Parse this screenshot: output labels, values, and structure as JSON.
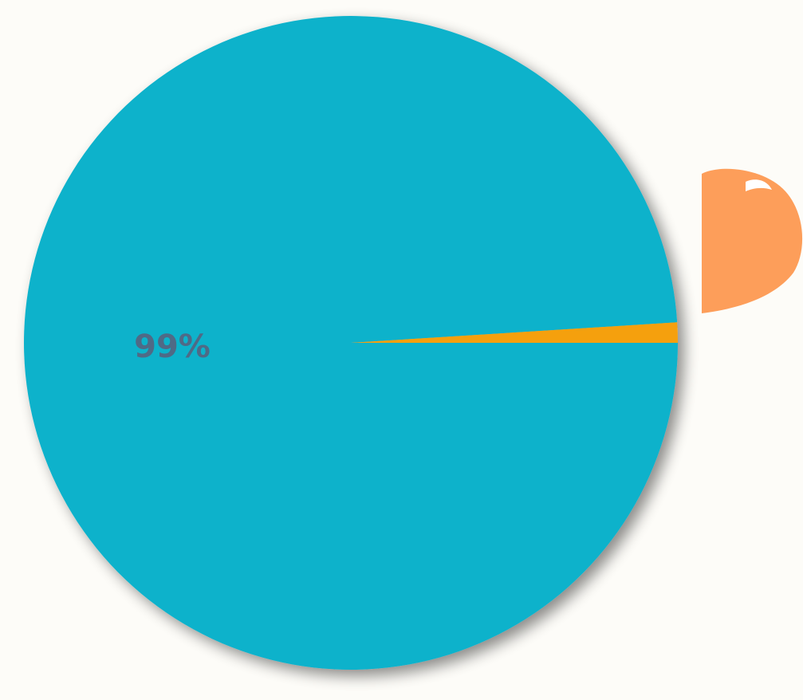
{
  "chart_data": {
    "type": "pie",
    "slices": [
      {
        "value": 99,
        "label": "99%",
        "color": "#0fb2cb"
      },
      {
        "value": 1,
        "label": "",
        "color": "#f5a00f"
      }
    ],
    "legend": "none"
  },
  "colors": {
    "background": "#fdfcf8",
    "label_text": "#4f6a86",
    "blob": "#fd9e5a"
  }
}
